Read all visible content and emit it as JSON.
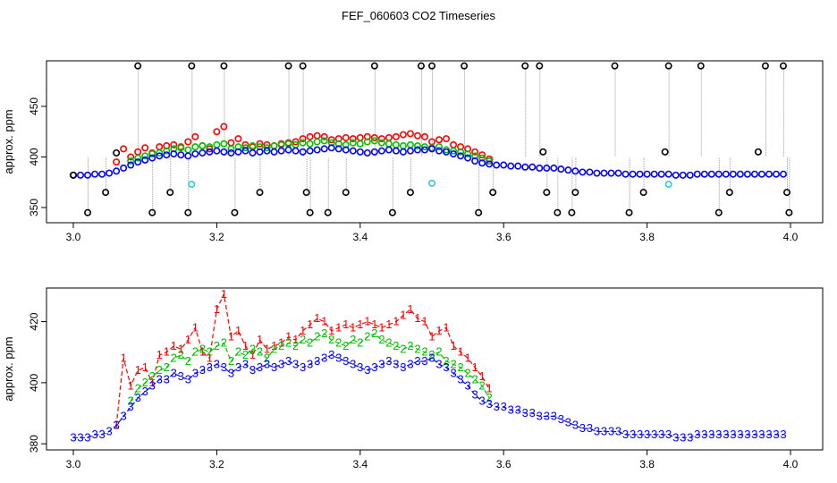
{
  "title": "FEF_060603  CO2 Timeseries",
  "colors": {
    "red": "#ff0000",
    "green": "#00c000",
    "blue": "#0000ff",
    "black": "#000000",
    "cyan": "#33cccc",
    "gray": "#9a9a9a"
  },
  "chart_data": [
    {
      "type": "scatter",
      "ylabel": "approx. ppm",
      "xlim": [
        3.0,
        4.0
      ],
      "ylim": [
        335,
        495
      ],
      "xticks": [
        "3.0",
        "3.2",
        "3.4",
        "3.6",
        "3.8",
        "4.0"
      ],
      "yticks": [
        "350",
        "400",
        "450"
      ],
      "series": [
        {
          "color": "red",
          "x": [
            3.06,
            3.07,
            3.08,
            3.09,
            3.1,
            3.11,
            3.12,
            3.13,
            3.14,
            3.15,
            3.16,
            3.17,
            3.18,
            3.19,
            3.2,
            3.21,
            3.22,
            3.23,
            3.24,
            3.25,
            3.26,
            3.27,
            3.28,
            3.29,
            3.3,
            3.31,
            3.32,
            3.33,
            3.34,
            3.35,
            3.36,
            3.37,
            3.38,
            3.39,
            3.4,
            3.41,
            3.42,
            3.43,
            3.44,
            3.45,
            3.46,
            3.47,
            3.48,
            3.49,
            3.5,
            3.51,
            3.52,
            3.53,
            3.54,
            3.55,
            3.56,
            3.57,
            3.58
          ],
          "y": [
            395,
            408,
            400,
            405,
            409,
            404,
            410,
            411,
            412,
            410,
            415,
            420,
            411,
            408,
            425,
            430,
            414,
            418,
            412,
            410,
            413,
            412,
            411,
            413,
            414,
            415,
            418,
            420,
            421,
            420,
            417,
            418,
            419,
            418,
            419,
            420,
            419,
            418,
            419,
            420,
            422,
            423,
            421,
            420,
            415,
            417,
            418,
            412,
            410,
            408,
            405,
            402,
            398
          ]
        },
        {
          "color": "green",
          "x": [
            3.08,
            3.09,
            3.1,
            3.11,
            3.12,
            3.13,
            3.14,
            3.15,
            3.16,
            3.17,
            3.18,
            3.19,
            3.2,
            3.21,
            3.22,
            3.23,
            3.24,
            3.25,
            3.26,
            3.27,
            3.28,
            3.29,
            3.3,
            3.31,
            3.32,
            3.33,
            3.34,
            3.35,
            3.36,
            3.37,
            3.38,
            3.39,
            3.4,
            3.41,
            3.42,
            3.43,
            3.44,
            3.45,
            3.46,
            3.47,
            3.48,
            3.49,
            3.5,
            3.51,
            3.52,
            3.53,
            3.54,
            3.55,
            3.56,
            3.57,
            3.58
          ],
          "y": [
            396,
            399,
            401,
            403,
            404,
            406,
            408,
            409,
            407,
            410,
            411,
            410,
            412,
            413,
            408,
            410,
            409,
            411,
            410,
            409,
            411,
            412,
            413,
            412,
            414,
            413,
            415,
            416,
            414,
            413,
            412,
            414,
            413,
            415,
            416,
            414,
            413,
            412,
            411,
            412,
            411,
            410,
            409,
            410,
            407,
            406,
            405,
            403,
            401,
            399,
            396
          ]
        },
        {
          "color": "blue",
          "x": [
            3.0,
            3.01,
            3.02,
            3.03,
            3.04,
            3.05,
            3.06,
            3.07,
            3.08,
            3.09,
            3.1,
            3.11,
            3.12,
            3.13,
            3.14,
            3.15,
            3.16,
            3.17,
            3.18,
            3.19,
            3.2,
            3.21,
            3.22,
            3.23,
            3.24,
            3.25,
            3.26,
            3.27,
            3.28,
            3.29,
            3.3,
            3.31,
            3.32,
            3.33,
            3.34,
            3.35,
            3.36,
            3.37,
            3.38,
            3.39,
            3.4,
            3.41,
            3.42,
            3.43,
            3.44,
            3.45,
            3.46,
            3.47,
            3.48,
            3.49,
            3.5,
            3.51,
            3.52,
            3.53,
            3.54,
            3.55,
            3.56,
            3.57,
            3.58,
            3.59,
            3.6,
            3.61,
            3.62,
            3.63,
            3.64,
            3.65,
            3.66,
            3.67,
            3.68,
            3.69,
            3.7,
            3.71,
            3.72,
            3.73,
            3.74,
            3.75,
            3.76,
            3.77,
            3.78,
            3.79,
            3.8,
            3.81,
            3.82,
            3.83,
            3.84,
            3.85,
            3.86,
            3.87,
            3.88,
            3.89,
            3.9,
            3.91,
            3.92,
            3.93,
            3.94,
            3.95,
            3.96,
            3.97,
            3.98,
            3.99
          ],
          "y": [
            382,
            382,
            382,
            383,
            383,
            384,
            386,
            389,
            392,
            395,
            397,
            399,
            401,
            402,
            403,
            402,
            401,
            403,
            404,
            405,
            406,
            405,
            404,
            405,
            406,
            404,
            405,
            406,
            405,
            406,
            407,
            406,
            405,
            406,
            407,
            408,
            409,
            408,
            407,
            406,
            405,
            404,
            405,
            406,
            407,
            406,
            405,
            406,
            407,
            407,
            408,
            406,
            405,
            403,
            401,
            399,
            396,
            394,
            393,
            392,
            392,
            391,
            391,
            390,
            390,
            389,
            389,
            389,
            388,
            387,
            386,
            385,
            385,
            384,
            384,
            384,
            384,
            383,
            383,
            383,
            383,
            383,
            383,
            383,
            382,
            382,
            382,
            383,
            383,
            383,
            383,
            383,
            383,
            383,
            383,
            383,
            383,
            383,
            383,
            383
          ]
        },
        {
          "color": "black",
          "x": [
            3.0,
            3.02,
            3.045,
            3.06,
            3.09,
            3.11,
            3.135,
            3.16,
            3.165,
            3.21,
            3.225,
            3.26,
            3.3,
            3.32,
            3.325,
            3.33,
            3.355,
            3.38,
            3.42,
            3.445,
            3.47,
            3.485,
            3.5,
            3.545,
            3.565,
            3.585,
            3.63,
            3.65,
            3.655,
            3.66,
            3.675,
            3.695,
            3.7,
            3.755,
            3.775,
            3.795,
            3.825,
            3.83,
            3.875,
            3.9,
            3.915,
            3.955,
            3.965,
            3.99,
            3.995,
            3.998
          ],
          "y": [
            382,
            345,
            365,
            404,
            490,
            345,
            365,
            345,
            490,
            490,
            345,
            365,
            490,
            490,
            365,
            345,
            345,
            365,
            490,
            345,
            365,
            490,
            490,
            490,
            345,
            365,
            490,
            490,
            405,
            365,
            345,
            345,
            365,
            490,
            345,
            365,
            405,
            490,
            490,
            345,
            365,
            405,
            490,
            490,
            365,
            345
          ]
        },
        {
          "color": "cyan",
          "x": [
            3.165,
            3.5,
            3.83
          ],
          "y": [
            373,
            374,
            373
          ]
        }
      ]
    },
    {
      "type": "line",
      "ylabel": "approx. ppm",
      "xlim": [
        3.0,
        4.0
      ],
      "ylim": [
        378,
        431
      ],
      "xticks": [
        "3.0",
        "3.2",
        "3.4",
        "3.6",
        "3.8",
        "4.0"
      ],
      "yticks": [
        "380",
        "400",
        "420"
      ],
      "series": [
        {
          "name": "1",
          "color": "red",
          "x": [
            3.06,
            3.07,
            3.08,
            3.09,
            3.1,
            3.11,
            3.12,
            3.13,
            3.14,
            3.15,
            3.16,
            3.17,
            3.18,
            3.19,
            3.2,
            3.21,
            3.22,
            3.23,
            3.24,
            3.25,
            3.26,
            3.27,
            3.28,
            3.29,
            3.3,
            3.31,
            3.32,
            3.33,
            3.34,
            3.35,
            3.36,
            3.37,
            3.38,
            3.39,
            3.4,
            3.41,
            3.42,
            3.43,
            3.44,
            3.45,
            3.46,
            3.47,
            3.48,
            3.49,
            3.5,
            3.51,
            3.52,
            3.53,
            3.54,
            3.55,
            3.56,
            3.57,
            3.58
          ],
          "y": [
            386,
            408,
            399,
            404,
            405,
            400,
            409,
            410,
            412,
            411,
            414,
            418,
            410,
            408,
            424,
            429,
            415,
            417,
            412,
            409,
            414,
            411,
            412,
            413,
            415,
            414,
            417,
            419,
            421,
            420,
            417,
            418,
            419,
            418,
            419,
            420,
            419,
            418,
            419,
            420,
            422,
            424,
            421,
            420,
            415,
            417,
            418,
            412,
            410,
            408,
            405,
            402,
            398
          ]
        },
        {
          "name": "2",
          "color": "green",
          "x": [
            3.08,
            3.09,
            3.1,
            3.11,
            3.12,
            3.13,
            3.14,
            3.15,
            3.16,
            3.17,
            3.18,
            3.19,
            3.2,
            3.21,
            3.22,
            3.23,
            3.24,
            3.25,
            3.26,
            3.27,
            3.28,
            3.29,
            3.3,
            3.31,
            3.32,
            3.33,
            3.34,
            3.35,
            3.36,
            3.37,
            3.38,
            3.39,
            3.4,
            3.41,
            3.42,
            3.43,
            3.44,
            3.45,
            3.46,
            3.47,
            3.48,
            3.49,
            3.5,
            3.51,
            3.52,
            3.53,
            3.54,
            3.55,
            3.56,
            3.57,
            3.58
          ],
          "y": [
            394,
            398,
            400,
            402,
            404,
            405,
            408,
            409,
            407,
            410,
            411,
            410,
            412,
            413,
            407,
            410,
            409,
            411,
            410,
            408,
            411,
            412,
            413,
            412,
            414,
            413,
            415,
            416,
            414,
            413,
            412,
            414,
            413,
            415,
            416,
            414,
            413,
            412,
            411,
            412,
            411,
            410,
            409,
            410,
            407,
            406,
            405,
            403,
            401,
            399,
            395
          ]
        },
        {
          "name": "3",
          "color": "blue",
          "x": [
            3.0,
            3.01,
            3.02,
            3.03,
            3.04,
            3.05,
            3.06,
            3.07,
            3.08,
            3.09,
            3.1,
            3.11,
            3.12,
            3.13,
            3.14,
            3.15,
            3.16,
            3.17,
            3.18,
            3.19,
            3.2,
            3.21,
            3.22,
            3.23,
            3.24,
            3.25,
            3.26,
            3.27,
            3.28,
            3.29,
            3.3,
            3.31,
            3.32,
            3.33,
            3.34,
            3.35,
            3.36,
            3.37,
            3.38,
            3.39,
            3.4,
            3.41,
            3.42,
            3.43,
            3.44,
            3.45,
            3.46,
            3.47,
            3.48,
            3.49,
            3.5,
            3.51,
            3.52,
            3.53,
            3.54,
            3.55,
            3.56,
            3.57,
            3.58,
            3.59,
            3.6,
            3.61,
            3.62,
            3.63,
            3.64,
            3.65,
            3.66,
            3.67,
            3.68,
            3.69,
            3.7,
            3.71,
            3.72,
            3.73,
            3.74,
            3.75,
            3.76,
            3.77,
            3.78,
            3.79,
            3.8,
            3.81,
            3.82,
            3.83,
            3.84,
            3.85,
            3.86,
            3.87,
            3.88,
            3.89,
            3.9,
            3.91,
            3.92,
            3.93,
            3.94,
            3.95,
            3.96,
            3.97,
            3.98,
            3.99
          ],
          "y": [
            382,
            382,
            382,
            383,
            383,
            384,
            386,
            389,
            392,
            395,
            397,
            399,
            401,
            401,
            403,
            402,
            401,
            403,
            404,
            405,
            406,
            405,
            403,
            405,
            406,
            404,
            405,
            406,
            405,
            406,
            407,
            406,
            405,
            406,
            407,
            408,
            409,
            408,
            407,
            406,
            405,
            404,
            405,
            406,
            407,
            406,
            405,
            406,
            407,
            407,
            408,
            406,
            405,
            403,
            401,
            399,
            396,
            394,
            393,
            392,
            392,
            391,
            391,
            390,
            390,
            389,
            389,
            389,
            388,
            387,
            386,
            385,
            385,
            384,
            384,
            384,
            384,
            383,
            383,
            383,
            383,
            383,
            383,
            383,
            382,
            382,
            382,
            383,
            383,
            383,
            383,
            383,
            383,
            383,
            383,
            383,
            383,
            383,
            383,
            383
          ]
        }
      ]
    }
  ]
}
